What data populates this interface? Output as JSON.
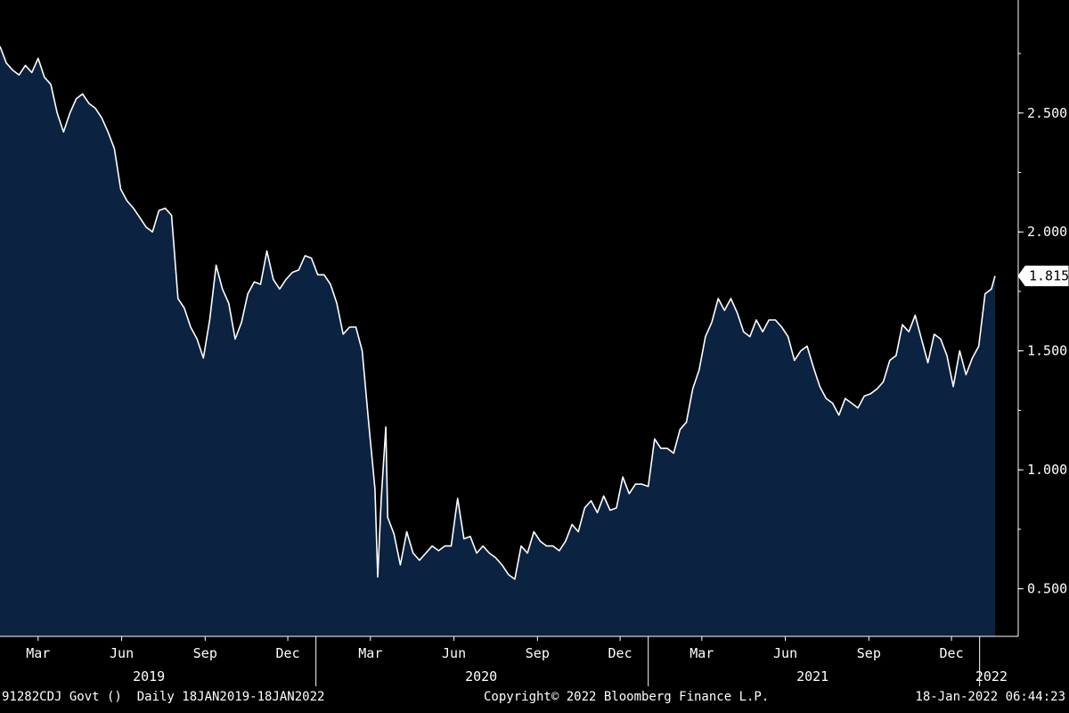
{
  "footer": {
    "ticker": "91282CDJ Govt ()",
    "range": "Daily 18JAN2019-18JAN2022",
    "copyright": "Copyright© 2022 Bloomberg Finance L.P.",
    "timestamp": "18-Jan-2022 06:44:23"
  },
  "colors": {
    "background": "#000000",
    "area_fill": "#0b2240",
    "line": "#ffffff"
  },
  "chart_data": {
    "type": "area",
    "title": "",
    "xlabel": "",
    "ylabel": "",
    "grid": false,
    "y_axis_position": "right",
    "ylim": [
      0.3,
      2.975
    ],
    "xlim": [
      "2019-01-18",
      "2022-01-18"
    ],
    "y_ticks": [
      "0.500",
      "1.000",
      "1.500",
      "2.000",
      "2.500"
    ],
    "x_month_ticks": [
      {
        "date": "2019-03-01",
        "label": "Mar"
      },
      {
        "date": "2019-06-01",
        "label": "Jun"
      },
      {
        "date": "2019-09-01",
        "label": "Sep"
      },
      {
        "date": "2019-12-01",
        "label": "Dec"
      },
      {
        "date": "2020-03-01",
        "label": "Mar"
      },
      {
        "date": "2020-06-01",
        "label": "Jun"
      },
      {
        "date": "2020-09-01",
        "label": "Sep"
      },
      {
        "date": "2020-12-01",
        "label": "Dec"
      },
      {
        "date": "2021-03-01",
        "label": "Mar"
      },
      {
        "date": "2021-06-01",
        "label": "Jun"
      },
      {
        "date": "2021-09-01",
        "label": "Sep"
      },
      {
        "date": "2021-12-01",
        "label": "Dec"
      }
    ],
    "x_year_ticks": [
      {
        "date": "2019-07-01",
        "label": "2019"
      },
      {
        "date": "2020-07-01",
        "label": "2020"
      },
      {
        "date": "2021-07-01",
        "label": "2021"
      },
      {
        "date": "2022-01-14",
        "label": "2022"
      }
    ],
    "year_dividers": [
      "2020-01-01",
      "2021-01-01",
      "2022-01-01"
    ],
    "last_value": "1.815",
    "series": [
      {
        "points": [
          [
            "2019-01-18",
            2.78
          ],
          [
            "2019-01-25",
            2.71
          ],
          [
            "2019-02-01",
            2.68
          ],
          [
            "2019-02-08",
            2.66
          ],
          [
            "2019-02-15",
            2.7
          ],
          [
            "2019-02-22",
            2.67
          ],
          [
            "2019-03-01",
            2.73
          ],
          [
            "2019-03-08",
            2.65
          ],
          [
            "2019-03-15",
            2.62
          ],
          [
            "2019-03-22",
            2.5
          ],
          [
            "2019-03-29",
            2.42
          ],
          [
            "2019-04-05",
            2.5
          ],
          [
            "2019-04-12",
            2.56
          ],
          [
            "2019-04-19",
            2.58
          ],
          [
            "2019-04-26",
            2.54
          ],
          [
            "2019-05-03",
            2.52
          ],
          [
            "2019-05-10",
            2.48
          ],
          [
            "2019-05-17",
            2.42
          ],
          [
            "2019-05-24",
            2.35
          ],
          [
            "2019-05-31",
            2.18
          ],
          [
            "2019-06-07",
            2.13
          ],
          [
            "2019-06-14",
            2.1
          ],
          [
            "2019-06-21",
            2.06
          ],
          [
            "2019-06-28",
            2.02
          ],
          [
            "2019-07-05",
            2.0
          ],
          [
            "2019-07-12",
            2.09
          ],
          [
            "2019-07-19",
            2.1
          ],
          [
            "2019-07-26",
            2.07
          ],
          [
            "2019-08-02",
            1.72
          ],
          [
            "2019-08-09",
            1.68
          ],
          [
            "2019-08-16",
            1.6
          ],
          [
            "2019-08-23",
            1.55
          ],
          [
            "2019-08-30",
            1.47
          ],
          [
            "2019-09-06",
            1.63
          ],
          [
            "2019-09-13",
            1.86
          ],
          [
            "2019-09-20",
            1.76
          ],
          [
            "2019-09-27",
            1.7
          ],
          [
            "2019-10-04",
            1.55
          ],
          [
            "2019-10-11",
            1.62
          ],
          [
            "2019-10-18",
            1.74
          ],
          [
            "2019-10-25",
            1.79
          ],
          [
            "2019-11-01",
            1.78
          ],
          [
            "2019-11-08",
            1.92
          ],
          [
            "2019-11-15",
            1.8
          ],
          [
            "2019-11-22",
            1.76
          ],
          [
            "2019-11-29",
            1.8
          ],
          [
            "2019-12-06",
            1.83
          ],
          [
            "2019-12-13",
            1.84
          ],
          [
            "2019-12-20",
            1.9
          ],
          [
            "2019-12-27",
            1.89
          ],
          [
            "2020-01-03",
            1.82
          ],
          [
            "2020-01-10",
            1.82
          ],
          [
            "2020-01-17",
            1.78
          ],
          [
            "2020-01-24",
            1.7
          ],
          [
            "2020-01-31",
            1.57
          ],
          [
            "2020-02-07",
            1.6
          ],
          [
            "2020-02-14",
            1.6
          ],
          [
            "2020-02-21",
            1.5
          ],
          [
            "2020-02-28",
            1.2
          ],
          [
            "2020-03-06",
            0.92
          ],
          [
            "2020-03-09",
            0.55
          ],
          [
            "2020-03-13",
            0.88
          ],
          [
            "2020-03-18",
            1.18
          ],
          [
            "2020-03-20",
            0.8
          ],
          [
            "2020-03-27",
            0.73
          ],
          [
            "2020-04-03",
            0.6
          ],
          [
            "2020-04-10",
            0.74
          ],
          [
            "2020-04-17",
            0.65
          ],
          [
            "2020-04-24",
            0.62
          ],
          [
            "2020-05-01",
            0.65
          ],
          [
            "2020-05-08",
            0.68
          ],
          [
            "2020-05-15",
            0.66
          ],
          [
            "2020-05-22",
            0.68
          ],
          [
            "2020-05-29",
            0.68
          ],
          [
            "2020-06-05",
            0.88
          ],
          [
            "2020-06-12",
            0.71
          ],
          [
            "2020-06-19",
            0.72
          ],
          [
            "2020-06-26",
            0.65
          ],
          [
            "2020-07-03",
            0.68
          ],
          [
            "2020-07-10",
            0.65
          ],
          [
            "2020-07-17",
            0.63
          ],
          [
            "2020-07-24",
            0.6
          ],
          [
            "2020-07-31",
            0.56
          ],
          [
            "2020-08-07",
            0.54
          ],
          [
            "2020-08-14",
            0.68
          ],
          [
            "2020-08-21",
            0.65
          ],
          [
            "2020-08-28",
            0.74
          ],
          [
            "2020-09-04",
            0.7
          ],
          [
            "2020-09-11",
            0.68
          ],
          [
            "2020-09-18",
            0.68
          ],
          [
            "2020-09-25",
            0.66
          ],
          [
            "2020-10-02",
            0.7
          ],
          [
            "2020-10-09",
            0.77
          ],
          [
            "2020-10-16",
            0.74
          ],
          [
            "2020-10-23",
            0.84
          ],
          [
            "2020-10-30",
            0.87
          ],
          [
            "2020-11-06",
            0.82
          ],
          [
            "2020-11-13",
            0.89
          ],
          [
            "2020-11-20",
            0.83
          ],
          [
            "2020-11-27",
            0.84
          ],
          [
            "2020-12-04",
            0.97
          ],
          [
            "2020-12-11",
            0.9
          ],
          [
            "2020-12-18",
            0.94
          ],
          [
            "2020-12-25",
            0.94
          ],
          [
            "2021-01-01",
            0.93
          ],
          [
            "2021-01-08",
            1.13
          ],
          [
            "2021-01-15",
            1.09
          ],
          [
            "2021-01-22",
            1.09
          ],
          [
            "2021-01-29",
            1.07
          ],
          [
            "2021-02-05",
            1.17
          ],
          [
            "2021-02-12",
            1.2
          ],
          [
            "2021-02-19",
            1.34
          ],
          [
            "2021-02-26",
            1.42
          ],
          [
            "2021-03-05",
            1.56
          ],
          [
            "2021-03-12",
            1.62
          ],
          [
            "2021-03-19",
            1.72
          ],
          [
            "2021-03-26",
            1.67
          ],
          [
            "2021-04-02",
            1.72
          ],
          [
            "2021-04-09",
            1.66
          ],
          [
            "2021-04-16",
            1.58
          ],
          [
            "2021-04-23",
            1.56
          ],
          [
            "2021-04-30",
            1.63
          ],
          [
            "2021-05-07",
            1.58
          ],
          [
            "2021-05-14",
            1.63
          ],
          [
            "2021-05-21",
            1.63
          ],
          [
            "2021-05-28",
            1.6
          ],
          [
            "2021-06-04",
            1.56
          ],
          [
            "2021-06-11",
            1.46
          ],
          [
            "2021-06-18",
            1.5
          ],
          [
            "2021-06-25",
            1.52
          ],
          [
            "2021-07-02",
            1.43
          ],
          [
            "2021-07-09",
            1.35
          ],
          [
            "2021-07-16",
            1.3
          ],
          [
            "2021-07-23",
            1.28
          ],
          [
            "2021-07-30",
            1.23
          ],
          [
            "2021-08-06",
            1.3
          ],
          [
            "2021-08-13",
            1.28
          ],
          [
            "2021-08-20",
            1.26
          ],
          [
            "2021-08-27",
            1.31
          ],
          [
            "2021-09-03",
            1.32
          ],
          [
            "2021-09-10",
            1.34
          ],
          [
            "2021-09-17",
            1.37
          ],
          [
            "2021-09-24",
            1.46
          ],
          [
            "2021-10-01",
            1.48
          ],
          [
            "2021-10-08",
            1.61
          ],
          [
            "2021-10-15",
            1.58
          ],
          [
            "2021-10-22",
            1.65
          ],
          [
            "2021-10-29",
            1.55
          ],
          [
            "2021-11-05",
            1.45
          ],
          [
            "2021-11-12",
            1.57
          ],
          [
            "2021-11-19",
            1.55
          ],
          [
            "2021-11-26",
            1.48
          ],
          [
            "2021-12-03",
            1.35
          ],
          [
            "2021-12-10",
            1.5
          ],
          [
            "2021-12-17",
            1.4
          ],
          [
            "2021-12-24",
            1.47
          ],
          [
            "2021-12-31",
            1.52
          ],
          [
            "2022-01-07",
            1.74
          ],
          [
            "2022-01-14",
            1.76
          ],
          [
            "2022-01-18",
            1.815
          ]
        ]
      }
    ]
  }
}
